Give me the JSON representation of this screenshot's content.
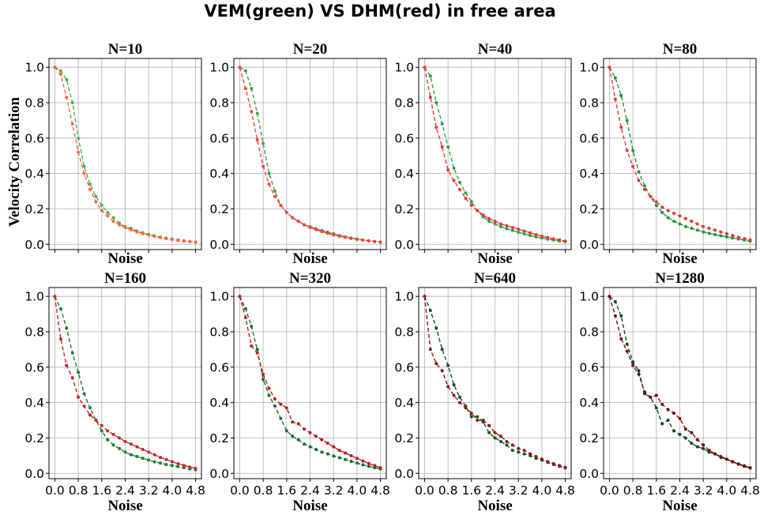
{
  "suptitle": "VEM(green) VS DHM(red) in free area",
  "chart_data": [
    {
      "type": "line",
      "title": "N=10",
      "xlabel": "Noise",
      "ylabel": "Velocity Correlation",
      "xlim": [
        -0.2,
        5.0
      ],
      "ylim": [
        -0.03,
        1.05
      ],
      "xticks": [
        "0.0",
        "0.8",
        "1.6",
        "2.4",
        "3.2",
        "4.0",
        "4.8"
      ],
      "show_xticklabels": false,
      "yticks": [
        "0.0",
        "0.2",
        "0.4",
        "0.6",
        "0.8",
        "1.0"
      ],
      "grid": true,
      "x": [
        0.0,
        0.2,
        0.4,
        0.6,
        0.8,
        1.0,
        1.2,
        1.4,
        1.6,
        1.8,
        2.0,
        2.2,
        2.4,
        2.6,
        2.8,
        3.0,
        3.2,
        3.4,
        3.6,
        3.8,
        4.0,
        4.2,
        4.4,
        4.6,
        4.8
      ],
      "series": [
        {
          "name": "VEM",
          "color": "#4caf50",
          "values": [
            1.0,
            0.98,
            0.93,
            0.8,
            0.6,
            0.44,
            0.34,
            0.27,
            0.22,
            0.18,
            0.15,
            0.12,
            0.1,
            0.09,
            0.075,
            0.065,
            0.056,
            0.048,
            0.041,
            0.035,
            0.03,
            0.025,
            0.02,
            0.016,
            0.012
          ]
        },
        {
          "name": "DHM",
          "color": "#ff6347",
          "values": [
            1.0,
            0.96,
            0.83,
            0.68,
            0.52,
            0.4,
            0.31,
            0.24,
            0.19,
            0.16,
            0.13,
            0.11,
            0.095,
            0.082,
            0.07,
            0.06,
            0.052,
            0.045,
            0.038,
            0.032,
            0.027,
            0.022,
            0.018,
            0.015,
            0.012
          ]
        }
      ]
    },
    {
      "type": "line",
      "title": "N=20",
      "xlabel": "Noise",
      "ylabel": "",
      "xlim": [
        -0.2,
        5.0
      ],
      "ylim": [
        -0.03,
        1.05
      ],
      "xticks": [
        "0.0",
        "0.8",
        "1.6",
        "2.4",
        "3.2",
        "4.0",
        "4.8"
      ],
      "show_xticklabels": false,
      "yticks": [
        "0.0",
        "0.2",
        "0.4",
        "0.6",
        "0.8",
        "1.0"
      ],
      "grid": true,
      "x": [
        0.0,
        0.2,
        0.4,
        0.6,
        0.8,
        1.0,
        1.2,
        1.4,
        1.6,
        1.8,
        2.0,
        2.2,
        2.4,
        2.6,
        2.8,
        3.0,
        3.2,
        3.4,
        3.6,
        3.8,
        4.0,
        4.2,
        4.4,
        4.6,
        4.8
      ],
      "series": [
        {
          "name": "VEM",
          "color": "#43a047",
          "values": [
            1.0,
            0.98,
            0.88,
            0.74,
            0.57,
            0.4,
            0.3,
            0.22,
            0.18,
            0.15,
            0.13,
            0.11,
            0.1,
            0.088,
            0.078,
            0.068,
            0.059,
            0.05,
            0.042,
            0.036,
            0.03,
            0.025,
            0.02,
            0.016,
            0.012
          ]
        },
        {
          "name": "DHM",
          "color": "#f4433f",
          "values": [
            1.0,
            0.88,
            0.75,
            0.59,
            0.44,
            0.34,
            0.27,
            0.22,
            0.18,
            0.15,
            0.13,
            0.11,
            0.095,
            0.083,
            0.072,
            0.062,
            0.053,
            0.046,
            0.039,
            0.033,
            0.028,
            0.023,
            0.019,
            0.015,
            0.012
          ]
        }
      ]
    },
    {
      "type": "line",
      "title": "N=40",
      "xlabel": "Noise",
      "ylabel": "",
      "xlim": [
        -0.2,
        5.0
      ],
      "ylim": [
        -0.03,
        1.05
      ],
      "xticks": [
        "0.0",
        "0.8",
        "1.6",
        "2.4",
        "3.2",
        "4.0",
        "4.8"
      ],
      "show_xticklabels": false,
      "yticks": [
        "0.0",
        "0.2",
        "0.4",
        "0.6",
        "0.8",
        "1.0"
      ],
      "grid": true,
      "x": [
        0.0,
        0.2,
        0.4,
        0.6,
        0.8,
        1.0,
        1.2,
        1.4,
        1.6,
        1.8,
        2.0,
        2.2,
        2.4,
        2.6,
        2.8,
        3.0,
        3.2,
        3.4,
        3.6,
        3.8,
        4.0,
        4.2,
        4.4,
        4.6,
        4.8
      ],
      "series": [
        {
          "name": "VEM",
          "color": "#2e9e4a",
          "values": [
            1.0,
            0.95,
            0.8,
            0.68,
            0.55,
            0.43,
            0.35,
            0.29,
            0.24,
            0.19,
            0.155,
            0.13,
            0.115,
            0.1,
            0.088,
            0.078,
            0.068,
            0.059,
            0.05,
            0.042,
            0.035,
            0.029,
            0.024,
            0.019,
            0.015
          ]
        },
        {
          "name": "DHM",
          "color": "#e53935",
          "values": [
            1.0,
            0.83,
            0.66,
            0.55,
            0.42,
            0.36,
            0.31,
            0.26,
            0.22,
            0.19,
            0.165,
            0.145,
            0.13,
            0.115,
            0.105,
            0.095,
            0.085,
            0.075,
            0.065,
            0.055,
            0.046,
            0.038,
            0.031,
            0.025,
            0.018
          ]
        }
      ]
    },
    {
      "type": "line",
      "title": "N=80",
      "xlabel": "Noise",
      "ylabel": "",
      "xlim": [
        -0.2,
        5.0
      ],
      "ylim": [
        -0.03,
        1.05
      ],
      "xticks": [
        "0.0",
        "0.8",
        "1.6",
        "2.4",
        "3.2",
        "4.0",
        "4.8"
      ],
      "show_xticklabels": false,
      "yticks": [
        "0.0",
        "0.2",
        "0.4",
        "0.6",
        "0.8",
        "1.0"
      ],
      "grid": true,
      "x": [
        0.0,
        0.2,
        0.4,
        0.6,
        0.8,
        1.0,
        1.2,
        1.4,
        1.6,
        1.8,
        2.0,
        2.2,
        2.4,
        2.6,
        2.8,
        3.0,
        3.2,
        3.4,
        3.6,
        3.8,
        4.0,
        4.2,
        4.4,
        4.6,
        4.8
      ],
      "series": [
        {
          "name": "VEM",
          "color": "#269141",
          "values": [
            1.0,
            0.94,
            0.84,
            0.7,
            0.53,
            0.41,
            0.33,
            0.27,
            0.22,
            0.18,
            0.15,
            0.13,
            0.115,
            0.1,
            0.09,
            0.08,
            0.07,
            0.062,
            0.055,
            0.048,
            0.042,
            0.036,
            0.03,
            0.024,
            0.018
          ]
        },
        {
          "name": "DHM",
          "color": "#e53935",
          "values": [
            1.0,
            0.82,
            0.66,
            0.53,
            0.44,
            0.36,
            0.31,
            0.27,
            0.24,
            0.21,
            0.19,
            0.175,
            0.16,
            0.145,
            0.13,
            0.115,
            0.1,
            0.09,
            0.08,
            0.07,
            0.06,
            0.05,
            0.04,
            0.032,
            0.025
          ]
        }
      ]
    },
    {
      "type": "line",
      "title": "N=160",
      "xlabel": "Noise",
      "ylabel": "",
      "xlim": [
        -0.2,
        5.0
      ],
      "ylim": [
        -0.03,
        1.05
      ],
      "xticks": [
        "0.0",
        "0.8",
        "1.6",
        "2.4",
        "3.2",
        "4.0",
        "4.8"
      ],
      "show_xticklabels": true,
      "yticks": [
        "0.0",
        "0.2",
        "0.4",
        "0.6",
        "0.8",
        "1.0"
      ],
      "grid": true,
      "x": [
        0.0,
        0.2,
        0.4,
        0.6,
        0.8,
        1.0,
        1.2,
        1.4,
        1.6,
        1.8,
        2.0,
        2.2,
        2.4,
        2.6,
        2.8,
        3.0,
        3.2,
        3.4,
        3.6,
        3.8,
        4.0,
        4.2,
        4.4,
        4.6,
        4.8
      ],
      "series": [
        {
          "name": "VEM",
          "color": "#1e7d34",
          "values": [
            1.0,
            0.93,
            0.82,
            0.68,
            0.57,
            0.45,
            0.37,
            0.3,
            0.24,
            0.19,
            0.16,
            0.14,
            0.12,
            0.105,
            0.095,
            0.085,
            0.075,
            0.065,
            0.058,
            0.05,
            0.044,
            0.038,
            0.032,
            0.026,
            0.02
          ]
        },
        {
          "name": "DHM",
          "color": "#c62828",
          "values": [
            1.0,
            0.76,
            0.61,
            0.54,
            0.43,
            0.38,
            0.33,
            0.3,
            0.27,
            0.24,
            0.22,
            0.2,
            0.18,
            0.165,
            0.15,
            0.135,
            0.12,
            0.105,
            0.09,
            0.078,
            0.066,
            0.055,
            0.045,
            0.036,
            0.028
          ]
        }
      ]
    },
    {
      "type": "line",
      "title": "N=320",
      "xlabel": "Noise",
      "ylabel": "",
      "xlim": [
        -0.2,
        5.0
      ],
      "ylim": [
        -0.03,
        1.05
      ],
      "xticks": [
        "0.0",
        "0.8",
        "1.6",
        "2.4",
        "3.2",
        "4.0",
        "4.8"
      ],
      "show_xticklabels": true,
      "yticks": [
        "0.0",
        "0.2",
        "0.4",
        "0.6",
        "0.8",
        "1.0"
      ],
      "grid": true,
      "x": [
        0.0,
        0.2,
        0.4,
        0.6,
        0.8,
        1.0,
        1.2,
        1.4,
        1.6,
        1.8,
        2.0,
        2.2,
        2.4,
        2.6,
        2.8,
        3.0,
        3.2,
        3.4,
        3.6,
        3.8,
        4.0,
        4.2,
        4.4,
        4.6,
        4.8
      ],
      "series": [
        {
          "name": "VEM",
          "color": "#1b6b2e",
          "values": [
            1.0,
            0.93,
            0.83,
            0.7,
            0.53,
            0.44,
            0.38,
            0.31,
            0.24,
            0.21,
            0.19,
            0.165,
            0.15,
            0.135,
            0.12,
            0.11,
            0.098,
            0.088,
            0.078,
            0.068,
            0.058,
            0.048,
            0.04,
            0.032,
            0.025
          ]
        },
        {
          "name": "DHM",
          "color": "#b71c1c",
          "values": [
            1.0,
            0.88,
            0.72,
            0.68,
            0.56,
            0.48,
            0.42,
            0.39,
            0.37,
            0.29,
            0.28,
            0.25,
            0.23,
            0.21,
            0.19,
            0.17,
            0.15,
            0.13,
            0.115,
            0.1,
            0.085,
            0.07,
            0.056,
            0.044,
            0.032
          ]
        }
      ]
    },
    {
      "type": "line",
      "title": "N=640",
      "xlabel": "Noise",
      "ylabel": "",
      "xlim": [
        -0.2,
        5.0
      ],
      "ylim": [
        -0.03,
        1.05
      ],
      "xticks": [
        "0.0",
        "0.8",
        "1.6",
        "2.4",
        "3.2",
        "4.0",
        "4.8"
      ],
      "show_xticklabels": true,
      "yticks": [
        "0.0",
        "0.2",
        "0.4",
        "0.6",
        "0.8",
        "1.0"
      ],
      "grid": true,
      "x": [
        0.0,
        0.2,
        0.4,
        0.6,
        0.8,
        1.0,
        1.2,
        1.4,
        1.6,
        1.8,
        2.0,
        2.2,
        2.4,
        2.6,
        2.8,
        3.0,
        3.2,
        3.4,
        3.6,
        3.8,
        4.0,
        4.2,
        4.4,
        4.6,
        4.8
      ],
      "series": [
        {
          "name": "VEM",
          "color": "#14532a",
          "values": [
            1.0,
            0.92,
            0.82,
            0.7,
            0.61,
            0.5,
            0.43,
            0.38,
            0.32,
            0.32,
            0.29,
            0.23,
            0.2,
            0.18,
            0.16,
            0.13,
            0.12,
            0.11,
            0.1,
            0.085,
            0.075,
            0.062,
            0.05,
            0.04,
            0.03
          ]
        },
        {
          "name": "DHM",
          "color": "#8b1a1a",
          "values": [
            1.0,
            0.7,
            0.62,
            0.58,
            0.49,
            0.44,
            0.4,
            0.37,
            0.34,
            0.3,
            0.3,
            0.27,
            0.23,
            0.21,
            0.18,
            0.16,
            0.14,
            0.13,
            0.11,
            0.095,
            0.08,
            0.066,
            0.055,
            0.044,
            0.034
          ]
        }
      ]
    },
    {
      "type": "line",
      "title": "N=1280",
      "xlabel": "Noise",
      "ylabel": "",
      "xlim": [
        -0.2,
        5.0
      ],
      "ylim": [
        -0.03,
        1.05
      ],
      "xticks": [
        "0.0",
        "0.8",
        "1.6",
        "2.4",
        "3.2",
        "4.0",
        "4.8"
      ],
      "show_xticklabels": true,
      "yticks": [
        "0.0",
        "0.2",
        "0.4",
        "0.6",
        "0.8",
        "1.0"
      ],
      "grid": true,
      "x": [
        0.0,
        0.2,
        0.4,
        0.6,
        0.8,
        1.0,
        1.2,
        1.4,
        1.6,
        1.8,
        2.0,
        2.2,
        2.4,
        2.6,
        2.8,
        3.0,
        3.2,
        3.4,
        3.6,
        3.8,
        4.0,
        4.2,
        4.4,
        4.6,
        4.8
      ],
      "series": [
        {
          "name": "VEM",
          "color": "#0f4a22",
          "values": [
            1.0,
            0.97,
            0.89,
            0.73,
            0.63,
            0.58,
            0.45,
            0.43,
            0.37,
            0.28,
            0.3,
            0.24,
            0.22,
            0.2,
            0.17,
            0.15,
            0.14,
            0.12,
            0.11,
            0.09,
            0.08,
            0.065,
            0.053,
            0.043,
            0.032
          ]
        },
        {
          "name": "DHM",
          "color": "#6d1010",
          "values": [
            1.0,
            0.89,
            0.76,
            0.69,
            0.61,
            0.56,
            0.46,
            0.43,
            0.44,
            0.39,
            0.36,
            0.34,
            0.31,
            0.25,
            0.23,
            0.19,
            0.16,
            0.13,
            0.11,
            0.095,
            0.08,
            0.066,
            0.052,
            0.04,
            0.03
          ]
        }
      ]
    }
  ]
}
